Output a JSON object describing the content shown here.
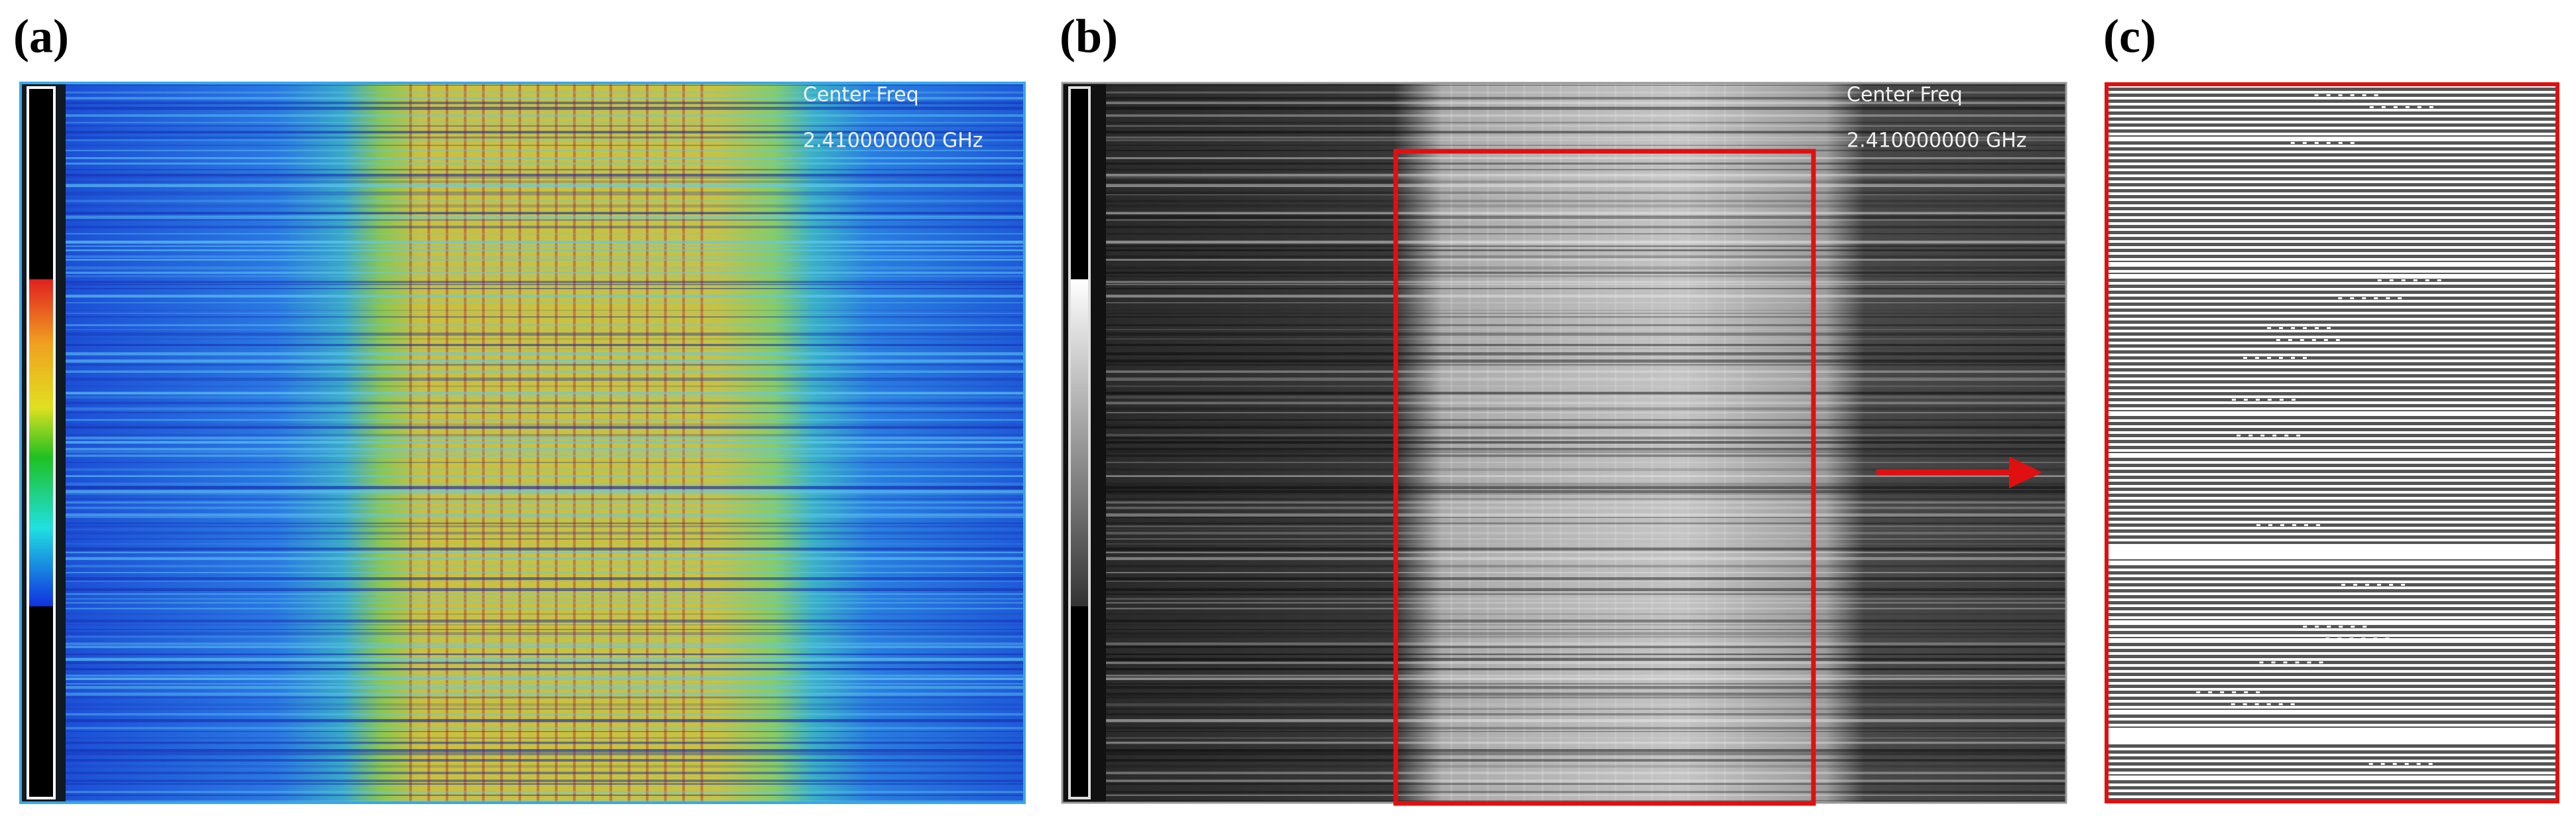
{
  "panels": [
    {
      "label": "(a)",
      "center_freq_label": "Center Freq",
      "center_freq_value": "2.410000000 GHz"
    },
    {
      "label": "(b)",
      "center_freq_label": "Center Freq",
      "center_freq_value": "2.410000000 GHz"
    },
    {
      "label": "(c)"
    }
  ]
}
